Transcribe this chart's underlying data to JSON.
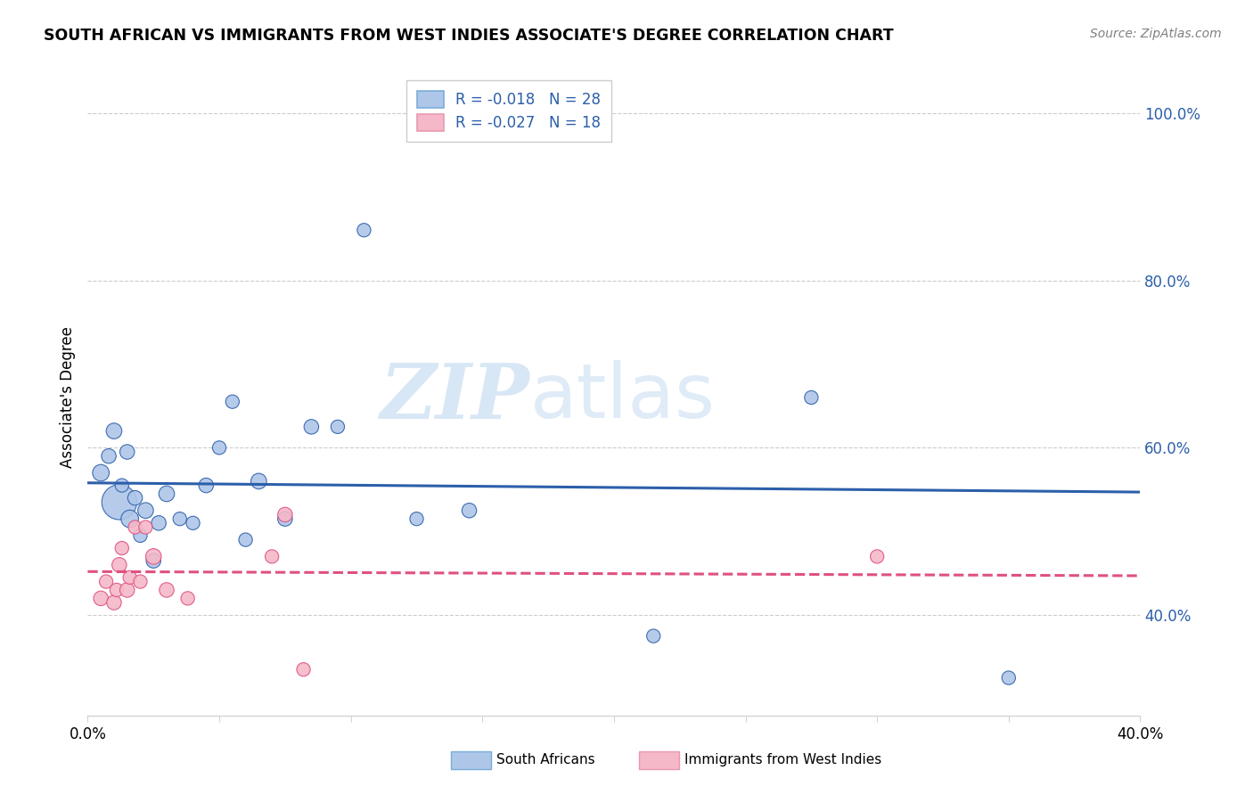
{
  "title": "SOUTH AFRICAN VS IMMIGRANTS FROM WEST INDIES ASSOCIATE'S DEGREE CORRELATION CHART",
  "source": "Source: ZipAtlas.com",
  "ylabel": "Associate's Degree",
  "xlim": [
    0.0,
    0.4
  ],
  "ylim": [
    0.28,
    1.04
  ],
  "yticks": [
    0.4,
    0.6,
    0.8,
    1.0
  ],
  "ytick_labels": [
    "40.0%",
    "60.0%",
    "80.0%",
    "100.0%"
  ],
  "xtick_positions": [
    0.0,
    0.05,
    0.1,
    0.15,
    0.2,
    0.25,
    0.3,
    0.35,
    0.4
  ],
  "blue_color": "#aec6e8",
  "blue_line_color": "#2c5faa",
  "pink_color": "#f4b8c8",
  "pink_line_color": "#e05080",
  "watermark_zip": "ZIP",
  "watermark_atlas": "atlas",
  "south_african_x": [
    0.005,
    0.008,
    0.01,
    0.012,
    0.013,
    0.015,
    0.016,
    0.018,
    0.02,
    0.022,
    0.025,
    0.027,
    0.03,
    0.035,
    0.04,
    0.045,
    0.05,
    0.055,
    0.06,
    0.065,
    0.075,
    0.085,
    0.095,
    0.105,
    0.125,
    0.145,
    0.215,
    0.275,
    0.35
  ],
  "south_african_y": [
    0.57,
    0.59,
    0.62,
    0.535,
    0.555,
    0.595,
    0.515,
    0.54,
    0.495,
    0.525,
    0.465,
    0.51,
    0.545,
    0.515,
    0.51,
    0.555,
    0.6,
    0.655,
    0.49,
    0.56,
    0.515,
    0.625,
    0.625,
    0.86,
    0.515,
    0.525,
    0.375,
    0.66,
    0.325
  ],
  "south_african_size": [
    180,
    140,
    160,
    800,
    120,
    140,
    200,
    140,
    120,
    160,
    140,
    140,
    160,
    120,
    120,
    140,
    120,
    120,
    120,
    160,
    140,
    140,
    120,
    120,
    120,
    140,
    120,
    120,
    120
  ],
  "west_indies_x": [
    0.005,
    0.007,
    0.01,
    0.011,
    0.012,
    0.013,
    0.015,
    0.016,
    0.018,
    0.02,
    0.022,
    0.025,
    0.03,
    0.038,
    0.07,
    0.075,
    0.082,
    0.3
  ],
  "west_indies_y": [
    0.42,
    0.44,
    0.415,
    0.43,
    0.46,
    0.48,
    0.43,
    0.445,
    0.505,
    0.44,
    0.505,
    0.47,
    0.43,
    0.42,
    0.47,
    0.52,
    0.335,
    0.47
  ],
  "west_indies_size": [
    140,
    120,
    140,
    120,
    140,
    120,
    140,
    120,
    120,
    120,
    120,
    160,
    140,
    120,
    120,
    140,
    120,
    120
  ],
  "blue_line_x": [
    0.0,
    0.4
  ],
  "blue_line_y": [
    0.558,
    0.547
  ],
  "pink_line_x": [
    0.0,
    0.4
  ],
  "pink_line_y": [
    0.452,
    0.447
  ]
}
